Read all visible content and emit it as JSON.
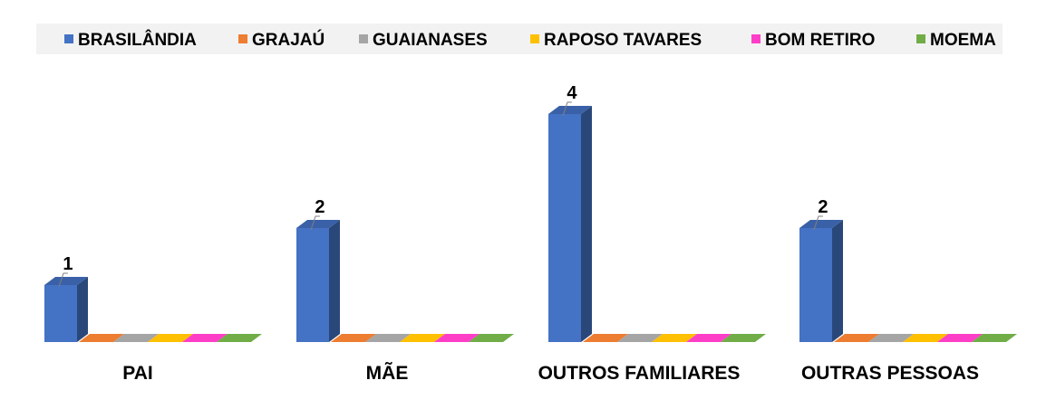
{
  "chart_data": {
    "type": "bar",
    "title": "",
    "xlabel": "",
    "ylabel": "",
    "ylim": [
      0,
      4
    ],
    "grid": false,
    "legend_position": "top",
    "three_d": true,
    "categories": [
      "PAI",
      "MÃE",
      "OUTROS FAMILIARES",
      "OUTRAS PESSOAS"
    ],
    "series": [
      {
        "name": "BRASILÂNDIA",
        "color": "#4472C4",
        "values": [
          1,
          2,
          4,
          2
        ],
        "show_labels": true
      },
      {
        "name": "GRAJAÚ",
        "color": "#ED7D31",
        "values": [
          0,
          0,
          0,
          0
        ],
        "show_labels": false
      },
      {
        "name": "GUAIANASES",
        "color": "#A5A5A5",
        "values": [
          0,
          0,
          0,
          0
        ],
        "show_labels": false
      },
      {
        "name": "RAPOSO TAVARES",
        "color": "#FFC000",
        "values": [
          0,
          0,
          0,
          0
        ],
        "show_labels": false
      },
      {
        "name": "BOM RETIRO",
        "color": "#FF3EC8",
        "values": [
          0,
          0,
          0,
          0
        ],
        "show_labels": false
      },
      {
        "name": "MOEMA",
        "color": "#70AD47",
        "values": [
          0,
          0,
          0,
          0
        ],
        "show_labels": false
      }
    ]
  }
}
